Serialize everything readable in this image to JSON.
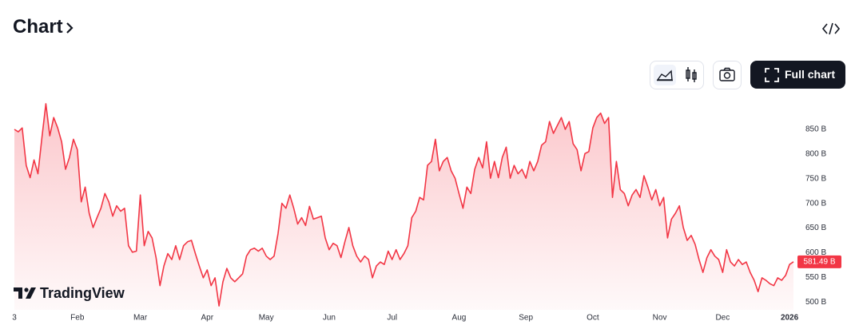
{
  "header": {
    "title": "Chart"
  },
  "toolbar": {
    "full_chart": "Full chart"
  },
  "branding": "TradingView",
  "chart_data": {
    "type": "area",
    "color": "#f23645",
    "categories": [
      "3",
      null,
      null,
      null,
      null,
      null,
      null,
      null,
      null,
      null,
      null,
      null,
      null,
      null,
      null,
      null,
      "Feb",
      null,
      null,
      null,
      null,
      null,
      null,
      null,
      null,
      null,
      null,
      null,
      null,
      null,
      null,
      null,
      "Mar",
      null,
      null,
      null,
      null,
      null,
      null,
      null,
      null,
      null,
      null,
      null,
      null,
      null,
      null,
      null,
      null,
      "Apr",
      null,
      null,
      null,
      null,
      null,
      null,
      null,
      null,
      null,
      null,
      null,
      null,
      null,
      null,
      "May",
      null,
      null,
      null,
      null,
      null,
      null,
      null,
      null,
      null,
      null,
      null,
      null,
      null,
      null,
      null,
      "Jun",
      null,
      null,
      null,
      null,
      null,
      null,
      null,
      null,
      null,
      null,
      null,
      null,
      null,
      null,
      null,
      "Jul",
      null,
      null,
      null,
      null,
      null,
      null,
      null,
      null,
      null,
      null,
      null,
      null,
      null,
      null,
      null,
      null,
      "Aug",
      null,
      null,
      null,
      null,
      null,
      null,
      null,
      null,
      null,
      null,
      null,
      null,
      null,
      null,
      null,
      null,
      "Sep",
      null,
      null,
      null,
      null,
      null,
      null,
      null,
      null,
      null,
      null,
      null,
      null,
      null,
      null,
      null,
      null,
      "Oct",
      null,
      null,
      null,
      null,
      null,
      null,
      null,
      null,
      null,
      null,
      null,
      null,
      null,
      null,
      null,
      null,
      "Nov",
      null,
      null,
      null,
      null,
      null,
      null,
      null,
      null,
      null,
      null,
      null,
      null,
      null,
      null,
      null,
      "Dec",
      null,
      null,
      null,
      null,
      null,
      null,
      null,
      null,
      null,
      null,
      null,
      null,
      null,
      null,
      null,
      null,
      "2026",
      null
    ],
    "values": [
      850,
      845,
      853,
      777,
      752,
      788,
      760,
      834,
      902,
      837,
      874,
      853,
      825,
      769,
      793,
      830,
      809,
      703,
      733,
      680,
      651,
      671,
      690,
      720,
      703,
      674,
      695,
      684,
      690,
      614,
      601,
      603,
      717,
      614,
      643,
      630,
      590,
      533,
      573,
      598,
      586,
      614,
      586,
      614,
      622,
      625,
      598,
      573,
      549,
      565,
      533,
      549,
      492,
      541,
      568,
      549,
      541,
      549,
      557,
      593,
      606,
      609,
      603,
      609,
      593,
      586,
      593,
      638,
      700,
      690,
      717,
      690,
      658,
      671,
      655,
      694,
      668,
      671,
      674,
      630,
      606,
      619,
      614,
      590,
      622,
      651,
      614,
      593,
      581,
      593,
      586,
      549,
      573,
      581,
      576,
      603,
      586,
      606,
      586,
      598,
      614,
      671,
      684,
      712,
      707,
      777,
      785,
      830,
      766,
      785,
      793,
      766,
      751,
      720,
      690,
      733,
      720,
      769,
      793,
      772,
      825,
      751,
      785,
      752,
      793,
      814,
      751,
      777,
      760,
      769,
      751,
      785,
      766,
      785,
      818,
      825,
      866,
      842,
      858,
      874,
      850,
      866,
      821,
      809,
      766,
      801,
      805,
      853,
      874,
      883,
      862,
      874,
      712,
      785,
      728,
      720,
      695,
      717,
      728,
      712,
      756,
      733,
      707,
      728,
      695,
      712,
      630,
      668,
      680,
      695,
      651,
      625,
      635,
      617,
      586,
      560,
      590,
      606,
      593,
      586,
      560,
      606,
      581,
      573,
      586,
      576,
      581,
      560,
      544,
      521,
      549,
      544,
      537,
      533,
      549,
      544,
      554,
      576,
      581.49
    ],
    "last_label": {
      "value": 581.49,
      "label": "581.49 B"
    },
    "ylim": [
      484,
      910
    ],
    "yticks": [
      {
        "value": 500,
        "label": "500 B"
      },
      {
        "value": 550,
        "label": "550 B"
      },
      {
        "value": 600,
        "label": "600 B"
      },
      {
        "value": 650,
        "label": "650 B"
      },
      {
        "value": 700,
        "label": "700 B"
      },
      {
        "value": 750,
        "label": "750 B"
      },
      {
        "value": 800,
        "label": "800 B"
      },
      {
        "value": 850,
        "label": "850 B"
      }
    ],
    "grid": false
  }
}
